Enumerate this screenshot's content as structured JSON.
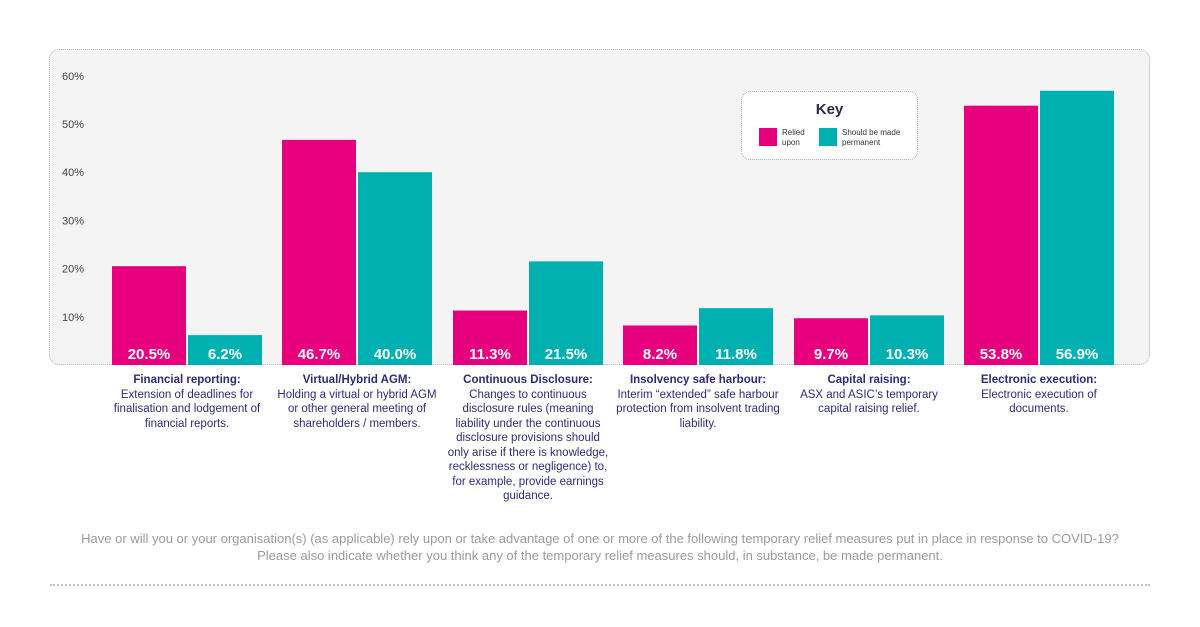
{
  "chart_data": {
    "type": "bar",
    "categories": [
      "Financial reporting:",
      "Virtual/Hybrid AGM:",
      "Continuous Disclosure:",
      "Insolvency safe harbour:",
      "Capital raising:",
      "Electronic execution:"
    ],
    "category_descriptions": [
      "Extension of deadlines for finalisation and lodgement of financial reports.",
      "Holding a virtual or hybrid AGM or other general meeting of shareholders / members.",
      "Changes to continuous disclosure rules (meaning liability under the continuous disclosure provisions should only arise if there is knowledge, recklessness or negligence) to, for example, provide earnings guidance.",
      "Interim “extended” safe harbour protection from insolvent trading liability.",
      "ASX and ASIC’s temporary capital raising relief.",
      "Electronic execution of documents."
    ],
    "series": [
      {
        "name": "Relied upon",
        "color": "#e6007e",
        "values": [
          20.5,
          46.7,
          11.3,
          8.2,
          9.7,
          53.8
        ],
        "labels": [
          "20.5%",
          "46.7%",
          "11.3%",
          "8.2%",
          "9.7%",
          "53.8%"
        ]
      },
      {
        "name": "Should be made permanent",
        "color": "#00b0b0",
        "values": [
          6.2,
          40.0,
          21.5,
          11.8,
          10.3,
          56.9
        ],
        "labels": [
          "6.2%",
          "40.0%",
          "21.5%",
          "11.8%",
          "10.3%",
          "56.9%"
        ]
      }
    ],
    "ylim": [
      0,
      60
    ],
    "yticks": [
      "10%",
      "20%",
      "30%",
      "40%",
      "50%",
      "60%"
    ],
    "ytick_values": [
      10,
      20,
      30,
      40,
      50,
      60
    ],
    "legend": {
      "title": "Key",
      "placement": "top-right"
    },
    "grid": false
  },
  "caption": "Have or will you or your organisation(s) (as applicable) rely upon or take advantage of one or more of the following temporary relief measures put in place in response to COVID-19? Please also indicate whether you think any of the temporary relief measures should, in substance, be made permanent."
}
